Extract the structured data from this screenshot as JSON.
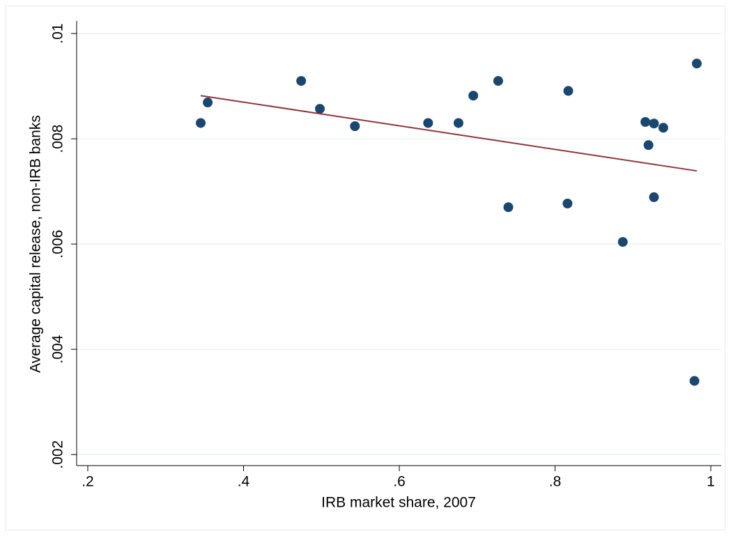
{
  "chart_data": {
    "type": "scatter",
    "x_label": "IRB market share, 2007",
    "y_label": "Average capital release, non-IRB banks",
    "xlim": [
      0.1857,
      1.0134
    ],
    "ylim": [
      0.00179,
      0.01024
    ],
    "xticks": [
      {
        "value": 0.2,
        "label": ".2"
      },
      {
        "value": 0.4,
        "label": ".4"
      },
      {
        "value": 0.6,
        "label": ".6"
      },
      {
        "value": 0.8,
        "label": ".8"
      },
      1
    ],
    "yticks": [
      {
        "value": 0.002,
        "label": ".002"
      },
      {
        "value": 0.004,
        "label": ".004"
      },
      {
        "value": 0.006,
        "label": ".006"
      },
      {
        "value": 0.008,
        "label": ".008"
      },
      {
        "value": 0.01,
        "label": ".01"
      }
    ],
    "grid": true,
    "series": [
      {
        "type": "scatter",
        "color": "#1a476f",
        "x": [
          0.345,
          0.354,
          0.474,
          0.498,
          0.543,
          0.637,
          0.676,
          0.695,
          0.727,
          0.74,
          0.817,
          0.816,
          0.887,
          0.916,
          0.927,
          0.939,
          0.92,
          0.927,
          0.982,
          0.979
        ],
        "values": [
          0.0083,
          0.00869,
          0.0091,
          0.00857,
          0.00824,
          0.0083,
          0.0083,
          0.00882,
          0.0091,
          0.0067,
          0.00891,
          0.00677,
          0.00604,
          0.00832,
          0.00829,
          0.00821,
          0.00788,
          0.00689,
          0.00943,
          0.0034
        ]
      },
      {
        "type": "line",
        "color": "#90353b",
        "x": [
          0.345,
          0.982
        ],
        "values": [
          0.00882,
          0.00739
        ]
      }
    ]
  }
}
